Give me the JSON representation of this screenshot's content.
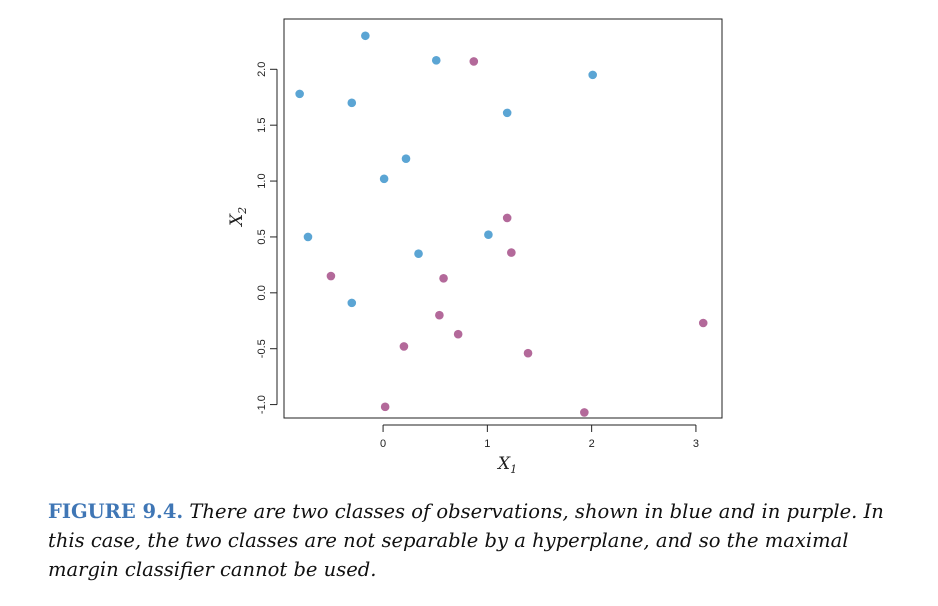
{
  "chart_data": {
    "type": "scatter",
    "xlabel": "X",
    "xlabel_sub": "1",
    "ylabel": "X",
    "ylabel_sub": "2",
    "xlim": [
      -0.95,
      3.25
    ],
    "ylim": [
      -1.12,
      2.45
    ],
    "xticks": [
      0,
      1,
      2,
      3
    ],
    "yticks": [
      -1.0,
      -0.5,
      0.0,
      0.5,
      1.0,
      1.5,
      2.0
    ],
    "grid": false,
    "colors": {
      "blue": "#5ba5d4",
      "purple": "#b3699a"
    },
    "series": [
      {
        "color": "blue",
        "points": [
          [
            -0.17,
            2.3
          ],
          [
            0.51,
            2.08
          ],
          [
            2.01,
            1.95
          ],
          [
            -0.8,
            1.78
          ],
          [
            -0.3,
            1.7
          ],
          [
            1.19,
            1.61
          ],
          [
            0.22,
            1.2
          ],
          [
            0.01,
            1.02
          ],
          [
            1.01,
            0.52
          ],
          [
            -0.72,
            0.5
          ],
          [
            0.34,
            0.35
          ],
          [
            -0.3,
            -0.09
          ]
        ]
      },
      {
        "color": "purple",
        "points": [
          [
            0.87,
            2.07
          ],
          [
            1.19,
            0.67
          ],
          [
            1.23,
            0.36
          ],
          [
            -0.5,
            0.15
          ],
          [
            0.58,
            0.13
          ],
          [
            0.54,
            -0.2
          ],
          [
            0.72,
            -0.37
          ],
          [
            0.2,
            -0.48
          ],
          [
            1.39,
            -0.54
          ],
          [
            3.07,
            -0.27
          ],
          [
            0.02,
            -1.02
          ],
          [
            1.93,
            -1.07
          ]
        ]
      }
    ]
  },
  "caption": {
    "label": "FIGURE 9.4.",
    "text": "There are two classes of observations, shown in blue and in purple. In this case, the two classes are not separable by a hyperplane, and so the maximal margin classifier cannot be used."
  }
}
